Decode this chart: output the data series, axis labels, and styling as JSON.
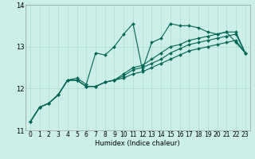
{
  "title": "",
  "xlabel": "Humidex (Indice chaleur)",
  "ylabel": "",
  "bg_color": "#cceee8",
  "grid_color": "#aaddcc",
  "line_color": "#006655",
  "xlim": [
    -0.5,
    23.5
  ],
  "ylim": [
    11,
    14
  ],
  "xticks": [
    0,
    1,
    2,
    3,
    4,
    5,
    6,
    7,
    8,
    9,
    10,
    11,
    12,
    13,
    14,
    15,
    16,
    17,
    18,
    19,
    20,
    21,
    22,
    23
  ],
  "yticks": [
    11,
    12,
    13,
    14
  ],
  "series": [
    [
      11.2,
      11.55,
      11.65,
      11.85,
      12.2,
      12.25,
      12.1,
      12.85,
      12.8,
      13.0,
      13.3,
      13.55,
      12.45,
      13.1,
      13.2,
      13.55,
      13.5,
      13.5,
      13.45,
      13.35,
      13.3,
      13.35,
      13.1,
      12.85
    ],
    [
      11.2,
      11.55,
      11.65,
      11.85,
      12.2,
      12.2,
      12.05,
      12.05,
      12.15,
      12.2,
      12.35,
      12.5,
      12.55,
      12.7,
      12.85,
      13.0,
      13.05,
      13.15,
      13.2,
      13.25,
      13.3,
      13.35,
      13.35,
      12.85
    ],
    [
      11.2,
      11.55,
      11.65,
      11.85,
      12.2,
      12.2,
      12.05,
      12.05,
      12.15,
      12.2,
      12.3,
      12.45,
      12.5,
      12.6,
      12.7,
      12.85,
      12.95,
      13.05,
      13.1,
      13.15,
      13.2,
      13.25,
      13.3,
      12.85
    ],
    [
      11.2,
      11.55,
      11.65,
      11.85,
      12.2,
      12.2,
      12.05,
      12.05,
      12.15,
      12.2,
      12.25,
      12.35,
      12.4,
      12.5,
      12.6,
      12.7,
      12.8,
      12.9,
      12.95,
      13.0,
      13.05,
      13.1,
      13.15,
      12.85
    ]
  ],
  "tick_fontsize": 5.5,
  "xlabel_fontsize": 6.0,
  "marker_size": 2.0,
  "line_width": 0.8
}
